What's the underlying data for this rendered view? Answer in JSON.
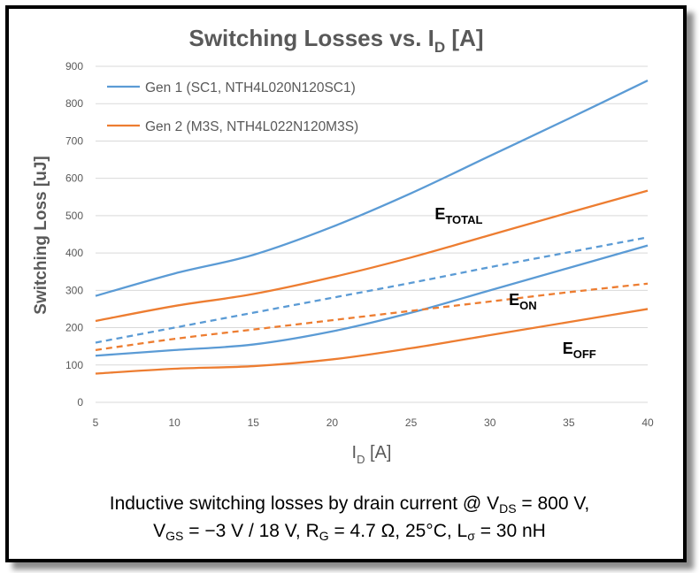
{
  "chart_data": {
    "type": "line",
    "title": "Switching Losses vs. I",
    "title_sub": "D",
    "title_suffix": " [A]",
    "xlabel": "I",
    "xlabel_sub": "D",
    "xlabel_suffix": " [A]",
    "ylabel": "Switching Loss [uJ]",
    "xlim": [
      5,
      40
    ],
    "ylim": [
      0,
      900
    ],
    "x_ticks": [
      5,
      10,
      15,
      20,
      25,
      30,
      35,
      40
    ],
    "y_ticks": [
      0,
      100,
      200,
      300,
      400,
      500,
      600,
      700,
      800,
      900
    ],
    "grid": "horizontal",
    "legend_position": "top-left",
    "legend": [
      {
        "label": "Gen 1 (SC1, NTH4L020N120SC1)",
        "color": "#5b9bd5"
      },
      {
        "label": "Gen 2 (M3S, NTH4L022N120M3S)",
        "color": "#ed7d31"
      }
    ],
    "series": [
      {
        "generation": "Gen 1",
        "kind": "E_TOTAL",
        "color": "#5b9bd5",
        "dash": false,
        "x": [
          5,
          10,
          15,
          20,
          25,
          30,
          35,
          40
        ],
        "values": [
          285,
          345,
          395,
          470,
          560,
          660,
          760,
          862
        ]
      },
      {
        "generation": "Gen 1",
        "kind": "E_ON",
        "color": "#5b9bd5",
        "dash": true,
        "x": [
          5,
          10,
          15,
          20,
          25,
          30,
          35,
          40
        ],
        "values": [
          160,
          200,
          240,
          280,
          320,
          362,
          402,
          442
        ]
      },
      {
        "generation": "Gen 1",
        "kind": "E_OFF",
        "color": "#5b9bd5",
        "dash": false,
        "x": [
          5,
          10,
          15,
          20,
          25,
          30,
          35,
          40
        ],
        "values": [
          125,
          140,
          155,
          190,
          240,
          300,
          360,
          420
        ]
      },
      {
        "generation": "Gen 2",
        "kind": "E_TOTAL",
        "color": "#ed7d31",
        "dash": false,
        "x": [
          5,
          10,
          15,
          20,
          25,
          30,
          35,
          40
        ],
        "values": [
          218,
          258,
          290,
          335,
          388,
          448,
          508,
          567
        ]
      },
      {
        "generation": "Gen 2",
        "kind": "E_ON",
        "color": "#ed7d31",
        "dash": true,
        "x": [
          5,
          10,
          15,
          20,
          25,
          30,
          35,
          40
        ],
        "values": [
          140,
          170,
          195,
          220,
          245,
          270,
          295,
          318
        ]
      },
      {
        "generation": "Gen 2",
        "kind": "E_OFF",
        "color": "#ed7d31",
        "dash": false,
        "x": [
          5,
          10,
          15,
          20,
          25,
          30,
          35,
          40
        ],
        "values": [
          77,
          90,
          97,
          115,
          145,
          180,
          215,
          250
        ]
      }
    ],
    "annotations": [
      {
        "main": "E",
        "sub": "TOTAL",
        "x": 26.5,
        "y": 490
      },
      {
        "main": "E",
        "sub": "ON",
        "x": 31.2,
        "y": 260
      },
      {
        "main": "E",
        "sub": "OFF",
        "x": 34.6,
        "y": 130
      }
    ]
  },
  "caption": {
    "line1_text": "Inductive switching losses by drain current @ V",
    "line1_sub": "DS",
    "line1_suffix": " = 800 V,",
    "vgs_main": "V",
    "vgs_sub": "GS",
    "vgs_value": " = −3 V / 18 V, ",
    "rg_main": "R",
    "rg_sub": "G",
    "rg_value": " = 4.7 Ω, 25°C, ",
    "l_main": "L",
    "l_sub": "σ",
    "l_value": " = 30 nH"
  }
}
